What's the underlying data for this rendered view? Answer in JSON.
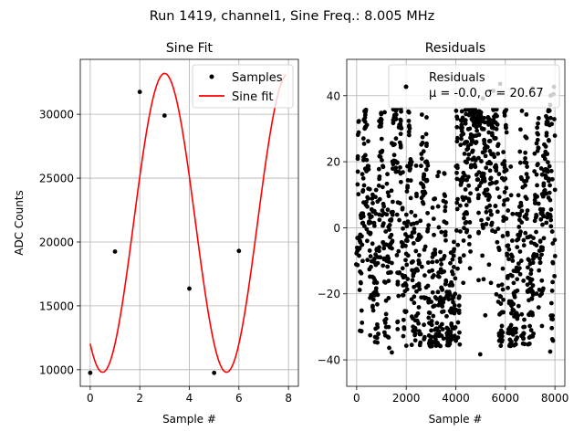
{
  "figure": {
    "suptitle": "Run 1419, channel1, Sine Freq.: 8.005 MHz"
  },
  "colors": {
    "fit_line": "#ff0000",
    "markers": "#000000",
    "grid": "#b0b0b0",
    "legend_border": "#cccccc"
  },
  "chart_data": [
    {
      "type": "line",
      "title": "Sine Fit",
      "xlabel": "Sample #",
      "ylabel": "ADC Counts",
      "xlim": [
        -0.4,
        8.4
      ],
      "ylim": [
        8700,
        34300
      ],
      "xticks": [
        0,
        2,
        4,
        6,
        8
      ],
      "xtick_labels": [
        "0",
        "2",
        "4",
        "6",
        "8"
      ],
      "yticks": [
        10000,
        15000,
        20000,
        25000,
        30000
      ],
      "ytick_labels": [
        "10000",
        "15000",
        "20000",
        "25000",
        "30000"
      ],
      "grid": true,
      "legend_position": "top-right",
      "series": [
        {
          "name": "Samples",
          "kind": "scatter",
          "x": [
            0,
            1,
            2,
            3,
            4,
            5,
            6
          ],
          "y": [
            9750,
            19250,
            31750,
            29900,
            16350,
            9750,
            19300
          ]
        },
        {
          "name": "Sine fit",
          "kind": "line",
          "model": {
            "offset": 21500,
            "amplitude": 11700,
            "period": 5.0,
            "phase": -2.2
          },
          "x_range": [
            0,
            7.9
          ]
        }
      ]
    },
    {
      "type": "scatter",
      "title": "Residuals",
      "xlabel": "Sample #",
      "ylabel": "",
      "xlim": [
        -400,
        8400
      ],
      "ylim": [
        -48,
        51
      ],
      "xticks": [
        0,
        2000,
        4000,
        6000,
        8000
      ],
      "xtick_labels": [
        "0",
        "2000",
        "4000",
        "6000",
        "8000"
      ],
      "yticks": [
        -40,
        -20,
        0,
        20,
        40
      ],
      "ytick_labels": [
        "−40",
        "−20",
        "0",
        "20",
        "40"
      ],
      "grid": true,
      "legend_position": "top-right",
      "stats": {
        "mean": -0.0,
        "sigma": 20.67
      },
      "legend": {
        "name": "Residuals",
        "stats_prefix": "μ = -0.0, σ = 20.67"
      },
      "series": [
        {
          "name": "Residuals",
          "n_points": 8000,
          "x_range": [
            0,
            7999
          ],
          "y_range": [
            -43,
            46
          ],
          "band": [
            -36,
            36
          ]
        }
      ]
    }
  ]
}
